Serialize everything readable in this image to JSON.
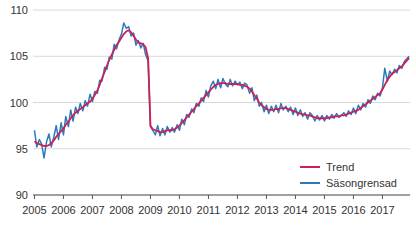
{
  "chart_data": {
    "type": "line",
    "x": [
      2005.0,
      2005.08,
      2005.17,
      2005.25,
      2005.33,
      2005.42,
      2005.5,
      2005.58,
      2005.67,
      2005.75,
      2005.83,
      2005.92,
      2006.0,
      2006.08,
      2006.17,
      2006.25,
      2006.33,
      2006.42,
      2006.5,
      2006.58,
      2006.67,
      2006.75,
      2006.83,
      2006.92,
      2007.0,
      2007.08,
      2007.17,
      2007.25,
      2007.33,
      2007.42,
      2007.5,
      2007.58,
      2007.67,
      2007.75,
      2007.83,
      2007.92,
      2008.0,
      2008.08,
      2008.17,
      2008.25,
      2008.33,
      2008.42,
      2008.5,
      2008.58,
      2008.67,
      2008.75,
      2008.83,
      2008.92,
      2009.0,
      2009.08,
      2009.17,
      2009.25,
      2009.33,
      2009.42,
      2009.5,
      2009.58,
      2009.67,
      2009.75,
      2009.83,
      2009.92,
      2010.0,
      2010.08,
      2010.17,
      2010.25,
      2010.33,
      2010.42,
      2010.5,
      2010.58,
      2010.67,
      2010.75,
      2010.83,
      2010.92,
      2011.0,
      2011.08,
      2011.17,
      2011.25,
      2011.33,
      2011.42,
      2011.5,
      2011.58,
      2011.67,
      2011.75,
      2011.83,
      2011.92,
      2012.0,
      2012.08,
      2012.17,
      2012.25,
      2012.33,
      2012.42,
      2012.5,
      2012.58,
      2012.67,
      2012.75,
      2012.83,
      2012.92,
      2013.0,
      2013.08,
      2013.17,
      2013.25,
      2013.33,
      2013.42,
      2013.5,
      2013.58,
      2013.67,
      2013.75,
      2013.83,
      2013.92,
      2014.0,
      2014.08,
      2014.17,
      2014.25,
      2014.33,
      2014.42,
      2014.5,
      2014.58,
      2014.67,
      2014.75,
      2014.83,
      2014.92,
      2015.0,
      2015.08,
      2015.17,
      2015.25,
      2015.33,
      2015.42,
      2015.5,
      2015.58,
      2015.67,
      2015.75,
      2015.83,
      2015.92,
      2016.0,
      2016.08,
      2016.17,
      2016.25,
      2016.33,
      2016.42,
      2016.5,
      2016.58,
      2016.67,
      2016.75,
      2016.83,
      2016.92,
      2017.0,
      2017.08,
      2017.17,
      2017.25,
      2017.33,
      2017.42,
      2017.5,
      2017.58,
      2017.67,
      2017.75,
      2017.83,
      2017.92
    ],
    "series": [
      {
        "name": "Säsongrensad",
        "color": "#2b7bba",
        "values": [
          97.0,
          95.2,
          96.0,
          95.5,
          94.0,
          95.8,
          96.6,
          95.2,
          96.3,
          97.5,
          96.0,
          97.8,
          96.5,
          98.5,
          97.4,
          99.2,
          98.0,
          99.5,
          98.8,
          99.9,
          99.1,
          100.2,
          99.6,
          100.9,
          100.1,
          101.2,
          101.0,
          102.4,
          102.3,
          103.8,
          103.6,
          104.9,
          104.7,
          106.3,
          105.8,
          106.8,
          107.4,
          108.6,
          108.0,
          108.2,
          107.2,
          107.5,
          106.2,
          106.7,
          105.9,
          106.4,
          105.2,
          104.5,
          97.4,
          97.0,
          96.5,
          97.5,
          96.4,
          97.2,
          96.5,
          97.4,
          96.8,
          97.3,
          96.8,
          97.6,
          97.0,
          98.2,
          97.6,
          98.7,
          98.4,
          99.3,
          98.9,
          99.9,
          99.6,
          100.5,
          100.1,
          101.3,
          100.6,
          101.8,
          102.3,
          101.5,
          102.5,
          101.6,
          102.6,
          102.0,
          101.7,
          102.5,
          101.8,
          102.3,
          101.9,
          102.2,
          101.5,
          102.1,
          101.9,
          101.0,
          101.6,
          100.2,
          100.8,
          99.6,
          100.0,
          99.0,
          99.7,
          98.8,
          99.6,
          99.0,
          99.7,
          98.9,
          99.9,
          99.2,
          99.6,
          99.0,
          99.5,
          98.7,
          99.4,
          98.6,
          99.2,
          98.5,
          98.9,
          98.2,
          98.9,
          98.6,
          98.0,
          98.6,
          98.1,
          98.6,
          98.0,
          98.6,
          98.2,
          98.7,
          98.3,
          98.8,
          98.4,
          98.6,
          98.9,
          98.5,
          99.1,
          98.7,
          99.4,
          98.8,
          99.7,
          99.2,
          99.9,
          99.5,
          100.3,
          99.9,
          100.7,
          100.3,
          101.0,
          100.7,
          101.6,
          103.7,
          102.3,
          103.4,
          103.0,
          103.6,
          103.2,
          104.0,
          103.7,
          104.4,
          104.7,
          105.0
        ]
      },
      {
        "name": "Trend",
        "color": "#cf1f58",
        "values": [
          95.8,
          95.6,
          95.5,
          95.4,
          95.3,
          95.3,
          95.4,
          95.6,
          95.9,
          96.3,
          96.6,
          96.9,
          97.2,
          97.6,
          97.9,
          98.3,
          98.6,
          98.9,
          99.1,
          99.3,
          99.5,
          99.7,
          99.9,
          100.1,
          100.4,
          100.8,
          101.3,
          101.9,
          102.6,
          103.3,
          104.0,
          104.6,
          105.2,
          105.7,
          106.2,
          106.6,
          107.0,
          107.4,
          107.7,
          107.8,
          107.6,
          107.2,
          106.8,
          106.5,
          106.4,
          106.3,
          106.0,
          104.8,
          97.5,
          97.1,
          97.0,
          96.9,
          96.8,
          96.8,
          96.9,
          97.0,
          97.0,
          97.0,
          97.1,
          97.3,
          97.5,
          97.8,
          98.1,
          98.4,
          98.7,
          99.0,
          99.3,
          99.6,
          99.9,
          100.2,
          100.5,
          100.8,
          101.1,
          101.4,
          101.7,
          101.9,
          102.0,
          102.1,
          102.1,
          102.1,
          102.0,
          102.0,
          102.0,
          102.0,
          102.0,
          101.9,
          101.9,
          101.8,
          101.7,
          101.5,
          101.2,
          100.8,
          100.4,
          100.0,
          99.7,
          99.5,
          99.3,
          99.2,
          99.2,
          99.2,
          99.3,
          99.3,
          99.4,
          99.4,
          99.4,
          99.3,
          99.2,
          99.1,
          99.0,
          98.9,
          98.8,
          98.7,
          98.7,
          98.6,
          98.6,
          98.5,
          98.4,
          98.3,
          98.3,
          98.3,
          98.3,
          98.3,
          98.4,
          98.4,
          98.5,
          98.5,
          98.5,
          98.6,
          98.6,
          98.7,
          98.8,
          98.9,
          99.0,
          99.1,
          99.2,
          99.4,
          99.6,
          99.8,
          100.0,
          100.2,
          100.4,
          100.6,
          100.8,
          101.0,
          101.4,
          101.9,
          102.4,
          102.8,
          103.1,
          103.3,
          103.5,
          103.7,
          103.9,
          104.2,
          104.5,
          104.8
        ]
      }
    ],
    "legend_order": null,
    "xlim": [
      2004.95,
      2017.95
    ],
    "xticks": [
      2005,
      2006,
      2007,
      2008,
      2009,
      2010,
      2011,
      2012,
      2013,
      2014,
      2015,
      2016,
      2017
    ],
    "ylim": [
      90,
      110
    ],
    "yticks": [
      90,
      95,
      100,
      105,
      110
    ],
    "grid": true,
    "legend": "lower right"
  }
}
